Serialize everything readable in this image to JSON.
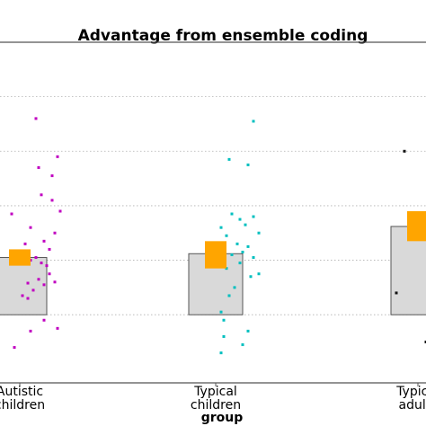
{
  "chart_data": {
    "type": "box-scatter",
    "title": "Advantage from ensemble coding",
    "xlabel": "group",
    "ylabel": "",
    "grid": true,
    "ylim": [
      -1.25,
      5.0
    ],
    "gridlines": [
      0,
      1,
      2,
      3,
      4,
      5
    ],
    "categories": [
      {
        "name": "Autistic children",
        "label_lines": [
          "Autistic",
          "children"
        ],
        "bar_mean": 1.05,
        "ci": [
          0.9,
          1.2
        ],
        "points_color": "#c000c0",
        "points": [
          {
            "dx": 0.06,
            "y": 3.6
          },
          {
            "dx": 0.14,
            "y": 2.9
          },
          {
            "dx": 0.07,
            "y": 2.7
          },
          {
            "dx": 0.12,
            "y": 2.55
          },
          {
            "dx": 0.08,
            "y": 2.2
          },
          {
            "dx": 0.12,
            "y": 2.1
          },
          {
            "dx": -0.03,
            "y": 1.85
          },
          {
            "dx": 0.15,
            "y": 1.9
          },
          {
            "dx": 0.04,
            "y": 1.6
          },
          {
            "dx": 0.13,
            "y": 1.5
          },
          {
            "dx": 0.09,
            "y": 1.35
          },
          {
            "dx": 0.11,
            "y": 1.2
          },
          {
            "dx": 0.02,
            "y": 1.3
          },
          {
            "dx": 0.06,
            "y": 1.05
          },
          {
            "dx": 0.08,
            "y": 0.95
          },
          {
            "dx": 0.1,
            "y": 0.9
          },
          {
            "dx": 0.04,
            "y": 1.0
          },
          {
            "dx": 0.11,
            "y": 0.75
          },
          {
            "dx": 0.07,
            "y": 0.65
          },
          {
            "dx": 0.13,
            "y": 0.6
          },
          {
            "dx": 0.03,
            "y": 0.58
          },
          {
            "dx": 0.09,
            "y": 0.55
          },
          {
            "dx": 0.05,
            "y": 0.45
          },
          {
            "dx": 0.01,
            "y": 0.35
          },
          {
            "dx": 0.03,
            "y": 0.3
          },
          {
            "dx": 0.09,
            "y": -0.1
          },
          {
            "dx": 0.14,
            "y": -0.25
          },
          {
            "dx": 0.04,
            "y": -0.3
          },
          {
            "dx": -0.02,
            "y": -0.6
          }
        ]
      },
      {
        "name": "Typical children",
        "label_lines": [
          "Typical",
          "children"
        ],
        "bar_mean": 1.12,
        "ci": [
          0.85,
          1.35
        ],
        "points_color": "#00bfbf",
        "points": [
          {
            "dx": 0.14,
            "y": 3.55
          },
          {
            "dx": 0.05,
            "y": 2.85
          },
          {
            "dx": 0.12,
            "y": 2.75
          },
          {
            "dx": 0.06,
            "y": 1.85
          },
          {
            "dx": 0.14,
            "y": 1.8
          },
          {
            "dx": 0.09,
            "y": 1.75
          },
          {
            "dx": 0.11,
            "y": 1.65
          },
          {
            "dx": 0.02,
            "y": 1.6
          },
          {
            "dx": 0.16,
            "y": 1.5
          },
          {
            "dx": 0.04,
            "y": 1.45
          },
          {
            "dx": 0.08,
            "y": 1.3
          },
          {
            "dx": 0.12,
            "y": 1.25
          },
          {
            "dx": 0.1,
            "y": 1.15
          },
          {
            "dx": 0.06,
            "y": 1.1
          },
          {
            "dx": 0.14,
            "y": 1.05
          },
          {
            "dx": 0.09,
            "y": 0.95
          },
          {
            "dx": 0.04,
            "y": 0.85
          },
          {
            "dx": 0.16,
            "y": 0.75
          },
          {
            "dx": 0.13,
            "y": 0.7
          },
          {
            "dx": 0.07,
            "y": 0.5
          },
          {
            "dx": 0.05,
            "y": 0.35
          },
          {
            "dx": 0.02,
            "y": 0.05
          },
          {
            "dx": 0.03,
            "y": -0.1
          },
          {
            "dx": 0.12,
            "y": -0.3
          },
          {
            "dx": 0.03,
            "y": -0.4
          },
          {
            "dx": 0.1,
            "y": -0.55
          },
          {
            "dx": 0.02,
            "y": -0.7
          }
        ]
      },
      {
        "name": "Typical adults",
        "label_lines": [
          "Typical",
          "adults"
        ],
        "bar_mean": 1.62,
        "ci": [
          1.35,
          1.9
        ],
        "points_color": "#111111",
        "points": [
          {
            "dx": 0.14,
            "y": 4.0
          },
          {
            "dx": 0.05,
            "y": 3.65
          },
          {
            "dx": -0.05,
            "y": 3.0
          },
          {
            "dx": 0.05,
            "y": 2.2
          },
          {
            "dx": 0.0,
            "y": 1.8
          },
          {
            "dx": 0.06,
            "y": 1.75
          },
          {
            "dx": 0.09,
            "y": 1.6
          },
          {
            "dx": 0.11,
            "y": 1.6
          },
          {
            "dx": 0.02,
            "y": 1.5
          },
          {
            "dx": 0.1,
            "y": 1.45
          },
          {
            "dx": 0.08,
            "y": 0.95
          },
          {
            "dx": -0.08,
            "y": 0.4
          },
          {
            "dx": 0.03,
            "y": -0.5
          }
        ]
      }
    ]
  },
  "colors": {
    "bar_fill": "#d9d9d9",
    "bar_edge": "#555555",
    "ci_fill": "#ffa500",
    "grid": "#b0b0b0",
    "axis": "#555555"
  }
}
